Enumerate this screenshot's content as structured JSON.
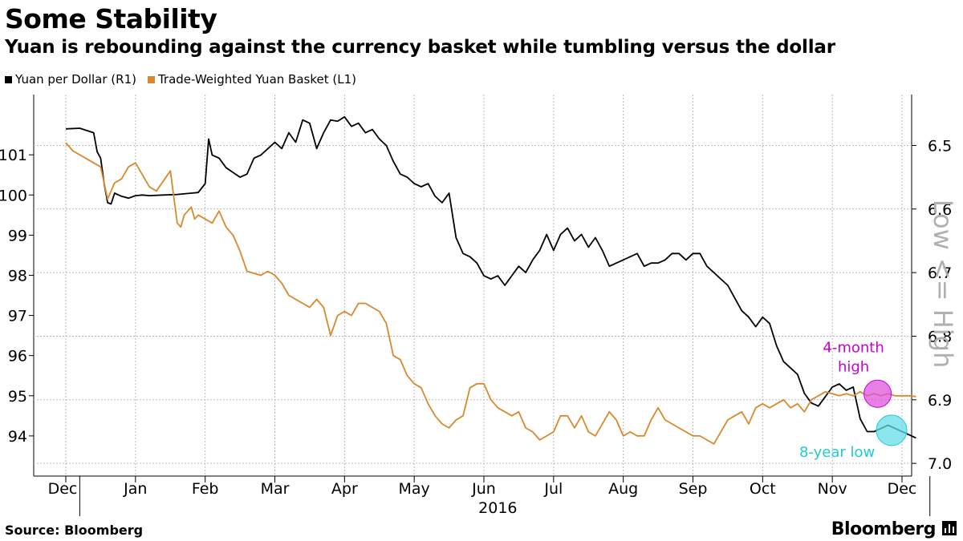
{
  "header": {
    "title": "Some Stability",
    "subtitle": "Yuan is rebounding against the currency basket while tumbling versus the dollar"
  },
  "footer": {
    "source": "Source: Bloomberg",
    "brand": "Bloomberg"
  },
  "icons": {
    "brand_icon": "bar-chart-icon"
  },
  "chart_data": {
    "type": "line",
    "title": "Some Stability",
    "subtitle": "Yuan is rebounding against the currency basket while tumbling versus the dollar",
    "x_unit": "month index (0 = Dec 1, 2015)",
    "month_labels": [
      "Dec",
      "Jan",
      "Feb",
      "Mar",
      "Apr",
      "May",
      "Jun",
      "Jul",
      "Aug",
      "Sep",
      "Oct",
      "Nov",
      "Dec"
    ],
    "year_label": "2016",
    "xlim": [
      0,
      12.4
    ],
    "left_axis": {
      "ticks": [
        94,
        95,
        96,
        97,
        98,
        99,
        100,
        101
      ],
      "ylim": [
        93.0,
        102.5
      ]
    },
    "right_axis": {
      "ticks": [
        6.5,
        6.6,
        6.7,
        6.8,
        6.9,
        7.0
      ],
      "ylim": [
        7.02,
        6.42
      ],
      "inverted": true,
      "label": "Low <= High"
    },
    "grid": true,
    "legend_position": "top-left",
    "series": [
      {
        "name": "Yuan per Dollar (R1)",
        "axis": "right",
        "color": "#000000",
        "x": [
          0.0,
          0.2,
          0.4,
          0.45,
          0.5,
          0.55,
          0.6,
          0.65,
          0.7,
          0.8,
          0.9,
          1.0,
          1.1,
          1.2,
          1.4,
          1.6,
          1.8,
          1.9,
          2.0,
          2.05,
          2.1,
          2.2,
          2.3,
          2.5,
          2.6,
          2.7,
          2.8,
          3.0,
          3.1,
          3.2,
          3.3,
          3.4,
          3.5,
          3.6,
          3.7,
          3.8,
          3.9,
          4.0,
          4.1,
          4.2,
          4.3,
          4.4,
          4.5,
          4.6,
          4.7,
          4.8,
          4.9,
          5.0,
          5.1,
          5.2,
          5.3,
          5.4,
          5.5,
          5.6,
          5.7,
          5.8,
          5.9,
          6.0,
          6.1,
          6.2,
          6.3,
          6.4,
          6.5,
          6.6,
          6.7,
          6.8,
          6.9,
          7.0,
          7.1,
          7.2,
          7.3,
          7.4,
          7.5,
          7.6,
          7.7,
          7.8,
          7.9,
          8.0,
          8.1,
          8.2,
          8.3,
          8.4,
          8.5,
          8.6,
          8.7,
          8.8,
          8.9,
          9.0,
          9.1,
          9.2,
          9.3,
          9.4,
          9.5,
          9.6,
          9.7,
          9.8,
          9.9,
          10.0,
          10.1,
          10.2,
          10.3,
          10.4,
          10.5,
          10.6,
          10.7,
          10.8,
          10.9,
          11.0,
          11.1,
          11.2,
          11.3,
          11.4,
          11.5,
          11.6,
          11.7,
          11.8,
          11.9,
          12.0,
          12.1,
          12.2
        ],
        "values": [
          6.474,
          6.473,
          6.48,
          6.51,
          6.52,
          6.56,
          6.59,
          6.592,
          6.575,
          6.58,
          6.583,
          6.579,
          6.578,
          6.579,
          6.578,
          6.577,
          6.575,
          6.574,
          6.56,
          6.49,
          6.515,
          6.52,
          6.535,
          6.55,
          6.545,
          6.52,
          6.515,
          6.495,
          6.505,
          6.48,
          6.495,
          6.46,
          6.465,
          6.505,
          6.48,
          6.46,
          6.462,
          6.455,
          6.47,
          6.465,
          6.48,
          6.475,
          6.49,
          6.5,
          6.525,
          6.545,
          6.55,
          6.56,
          6.565,
          6.56,
          6.58,
          6.59,
          6.575,
          6.645,
          6.67,
          6.675,
          6.685,
          6.705,
          6.71,
          6.705,
          6.72,
          6.705,
          6.69,
          6.7,
          6.68,
          6.665,
          6.64,
          6.665,
          6.64,
          6.63,
          6.65,
          6.64,
          6.66,
          6.645,
          6.665,
          6.69,
          6.685,
          6.68,
          6.675,
          6.67,
          6.69,
          6.685,
          6.685,
          6.68,
          6.67,
          6.67,
          6.68,
          6.67,
          6.67,
          6.69,
          6.7,
          6.71,
          6.72,
          6.74,
          6.76,
          6.77,
          6.785,
          6.77,
          6.78,
          6.815,
          6.84,
          6.85,
          6.86,
          6.89,
          6.905,
          6.91,
          6.895,
          6.88,
          6.875,
          6.885,
          6.88,
          6.93,
          6.95,
          6.95,
          6.945,
          6.94,
          6.945,
          6.95,
          6.955,
          6.96
        ]
      },
      {
        "name": "Trade-Weighted Yuan Basket (L1)",
        "axis": "left",
        "color": "#d9892b",
        "x": [
          0.0,
          0.1,
          0.3,
          0.5,
          0.6,
          0.7,
          0.8,
          0.9,
          1.0,
          1.1,
          1.2,
          1.3,
          1.5,
          1.6,
          1.65,
          1.7,
          1.8,
          1.85,
          1.9,
          2.0,
          2.1,
          2.2,
          2.3,
          2.4,
          2.5,
          2.6,
          2.8,
          2.9,
          3.0,
          3.1,
          3.2,
          3.3,
          3.4,
          3.5,
          3.6,
          3.7,
          3.8,
          3.9,
          4.0,
          4.1,
          4.2,
          4.3,
          4.4,
          4.5,
          4.6,
          4.7,
          4.8,
          4.9,
          5.0,
          5.1,
          5.2,
          5.3,
          5.4,
          5.5,
          5.6,
          5.7,
          5.8,
          5.9,
          6.0,
          6.1,
          6.2,
          6.3,
          6.4,
          6.5,
          6.6,
          6.7,
          6.8,
          6.9,
          7.0,
          7.1,
          7.2,
          7.3,
          7.4,
          7.5,
          7.6,
          7.7,
          7.8,
          7.9,
          8.0,
          8.1,
          8.2,
          8.3,
          8.4,
          8.5,
          8.6,
          8.7,
          8.8,
          8.9,
          9.0,
          9.1,
          9.2,
          9.3,
          9.4,
          9.5,
          9.6,
          9.7,
          9.8,
          9.9,
          10.0,
          10.1,
          10.2,
          10.3,
          10.4,
          10.5,
          10.6,
          10.7,
          10.8,
          10.9,
          11.0,
          11.1,
          11.2,
          11.3,
          11.4,
          11.5,
          11.6,
          11.7,
          11.8,
          11.9,
          12.0,
          12.1,
          12.2
        ],
        "values": [
          101.3,
          101.1,
          100.9,
          100.7,
          99.9,
          100.3,
          100.4,
          100.7,
          100.8,
          100.5,
          100.2,
          100.1,
          100.6,
          99.3,
          99.2,
          99.5,
          99.7,
          99.4,
          99.5,
          99.4,
          99.3,
          99.6,
          99.2,
          99.0,
          98.6,
          98.1,
          98.0,
          98.1,
          98.0,
          97.8,
          97.5,
          97.4,
          97.3,
          97.2,
          97.4,
          97.2,
          96.5,
          97.0,
          97.1,
          97.0,
          97.3,
          97.3,
          97.2,
          97.1,
          96.8,
          96.0,
          95.9,
          95.5,
          95.3,
          95.2,
          94.8,
          94.5,
          94.3,
          94.2,
          94.4,
          94.5,
          95.2,
          95.3,
          95.3,
          94.9,
          94.7,
          94.6,
          94.5,
          94.6,
          94.2,
          94.1,
          93.9,
          94.0,
          94.1,
          94.5,
          94.5,
          94.2,
          94.5,
          94.1,
          94.0,
          94.3,
          94.6,
          94.4,
          94.0,
          94.1,
          94.0,
          94.0,
          94.4,
          94.7,
          94.4,
          94.3,
          94.2,
          94.1,
          94.0,
          94.0,
          93.9,
          93.8,
          94.1,
          94.4,
          94.5,
          94.6,
          94.3,
          94.7,
          94.8,
          94.7,
          94.8,
          94.9,
          94.7,
          94.8,
          94.6,
          94.9,
          95.0,
          95.1,
          95.05,
          95.0,
          95.05,
          95.0,
          95.1,
          95.0,
          95.05,
          95.0,
          95.05,
          95.0,
          95.0,
          95.0,
          94.98
        ]
      }
    ],
    "annotations": [
      {
        "text": "4-month high",
        "line1": "4-month",
        "line2": "high",
        "color": "#cc00cc",
        "fill": "#dd55dd",
        "series": "Trade-Weighted Yuan Basket (L1)",
        "x": 11.65,
        "value": 95.05
      },
      {
        "text": "8-year low",
        "color": "#22c8d8",
        "fill": "#66dde8",
        "series": "Yuan per Dollar (R1)",
        "x": 11.85,
        "value": 6.948
      }
    ]
  }
}
